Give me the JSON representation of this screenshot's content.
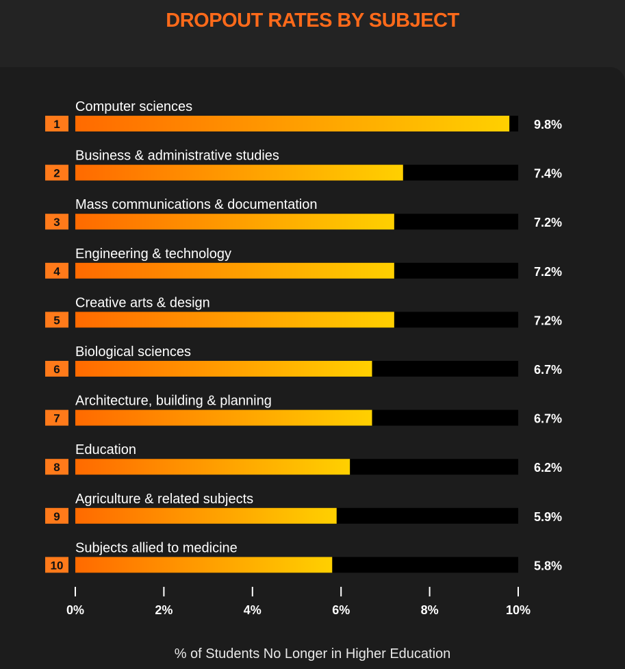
{
  "chart_data": {
    "type": "bar",
    "orientation": "horizontal",
    "title": "DROPOUT RATES BY SUBJECT",
    "xlabel": "% of Students No Longer in Higher Education",
    "ranks": [
      "1",
      "2",
      "3",
      "4",
      "5",
      "6",
      "7",
      "8",
      "9",
      "10"
    ],
    "categories": [
      "Computer sciences",
      "Business & administrative studies",
      "Mass communications & documentation",
      "Engineering & technology",
      "Creative arts & design",
      "Biological sciences",
      "Architecture, building & planning",
      "Education",
      "Agriculture & related subjects",
      "Subjects allied to medicine"
    ],
    "values": [
      9.8,
      7.4,
      7.2,
      7.2,
      7.2,
      6.7,
      6.7,
      6.2,
      5.9,
      5.8
    ],
    "value_labels": [
      "9.8%",
      "7.4%",
      "7.2%",
      "7.2%",
      "7.2%",
      "6.7%",
      "6.7%",
      "6.2%",
      "5.9%",
      "5.8%"
    ],
    "xlim": [
      0,
      10
    ],
    "xticks": [
      0,
      2,
      4,
      6,
      8,
      10
    ],
    "xtick_labels": [
      "0%",
      "2%",
      "4%",
      "6%",
      "8%",
      "10%"
    ],
    "grid": false,
    "legend": "none"
  },
  "colors": {
    "title": "#ff6a1a",
    "background": "#232323",
    "panel": "#1c1c1c",
    "bar_track": "#000000",
    "bar_start": "#ff6a00",
    "bar_end": "#ffd000",
    "rank_badge": "#ff7a1a"
  }
}
